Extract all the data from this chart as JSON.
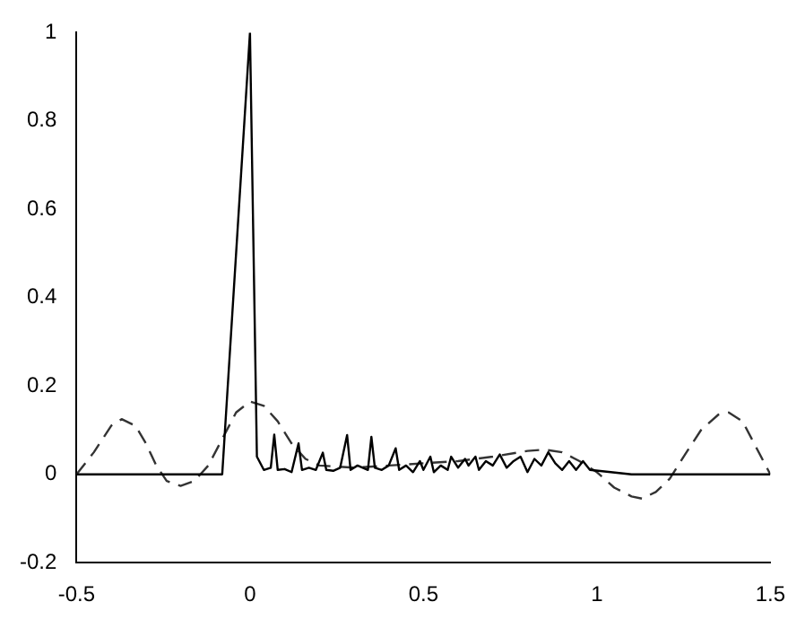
{
  "chart_data": {
    "type": "line",
    "xlim": [
      -0.5,
      1.5
    ],
    "xticks": [
      -0.5,
      0,
      0.5,
      1,
      1.5
    ],
    "ylim": [
      -0.2,
      1
    ],
    "yticks": [
      -0.2,
      0,
      0.2,
      0.4,
      0.6,
      0.8,
      1
    ],
    "marker": "none",
    "series": [
      {
        "color": "#000000",
        "line_style": "solid",
        "x": [
          -0.5,
          -0.08,
          0,
          0.02,
          0.04,
          0.06,
          0.07,
          0.08,
          0.1,
          0.12,
          0.14,
          0.15,
          0.17,
          0.19,
          0.21,
          0.22,
          0.24,
          0.26,
          0.28,
          0.29,
          0.31,
          0.34,
          0.35,
          0.36,
          0.38,
          0.4,
          0.42,
          0.43,
          0.45,
          0.47,
          0.49,
          0.5,
          0.52,
          0.53,
          0.55,
          0.57,
          0.58,
          0.6,
          0.62,
          0.63,
          0.65,
          0.66,
          0.68,
          0.7,
          0.72,
          0.74,
          0.76,
          0.78,
          0.8,
          0.82,
          0.84,
          0.86,
          0.88,
          0.9,
          0.92,
          0.94,
          0.96,
          0.98,
          1.1,
          1.5
        ],
        "values": [
          0,
          0,
          1,
          0.04,
          0.01,
          0.015,
          0.09,
          0.01,
          0.012,
          0.005,
          0.07,
          0.01,
          0.015,
          0.01,
          0.049,
          0.01,
          0.008,
          0.015,
          0.089,
          0.01,
          0.02,
          0.01,
          0.085,
          0.015,
          0.01,
          0.02,
          0.059,
          0.01,
          0.02,
          0.005,
          0.03,
          0.01,
          0.04,
          0.005,
          0.02,
          0.01,
          0.04,
          0.015,
          0.035,
          0.02,
          0.04,
          0.01,
          0.03,
          0.02,
          0.045,
          0.015,
          0.03,
          0.04,
          0.005,
          0.035,
          0.02,
          0.05,
          0.025,
          0.01,
          0.03,
          0.01,
          0.03,
          0.01,
          0,
          0
        ]
      },
      {
        "color": "#333333",
        "line_style": "dashed",
        "x": [
          -0.5,
          -0.45,
          -0.4,
          -0.37,
          -0.33,
          -0.3,
          -0.27,
          -0.24,
          -0.2,
          -0.16,
          -0.12,
          -0.08,
          -0.04,
          0,
          0.04,
          0.08,
          0.12,
          0.16,
          0.2,
          0.3,
          0.4,
          0.5,
          0.6,
          0.7,
          0.8,
          0.85,
          0.9,
          0.95,
          1,
          1.05,
          1.1,
          1.13,
          1.17,
          1.21,
          1.25,
          1.3,
          1.35,
          1.38,
          1.42,
          1.46,
          1.5
        ],
        "values": [
          0,
          0.05,
          0.11,
          0.125,
          0.11,
          0.07,
          0.02,
          -0.015,
          -0.026,
          -0.015,
          0.02,
          0.08,
          0.14,
          0.165,
          0.155,
          0.12,
          0.07,
          0.035,
          0.02,
          0.015,
          0.02,
          0.025,
          0.03,
          0.04,
          0.053,
          0.056,
          0.05,
          0.03,
          0.005,
          -0.03,
          -0.05,
          -0.055,
          -0.04,
          -0.01,
          0.04,
          0.1,
          0.135,
          0.14,
          0.12,
          0.06,
          0
        ]
      }
    ]
  }
}
